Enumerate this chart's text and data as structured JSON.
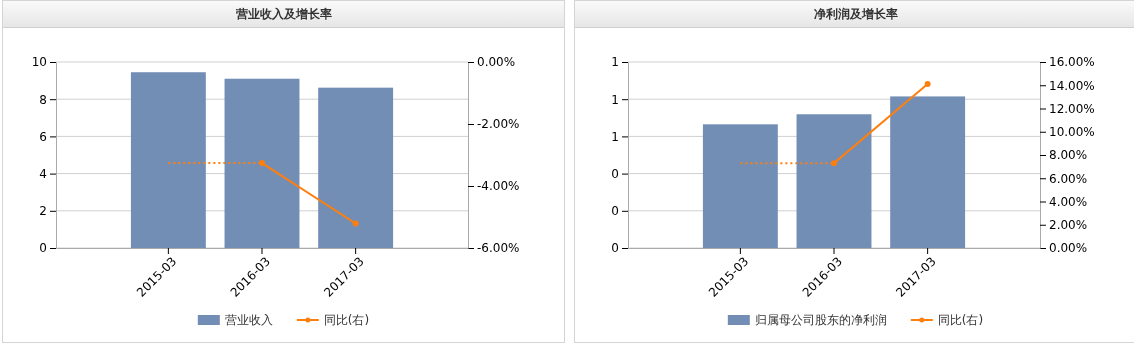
{
  "chart_data": [
    {
      "type": "bar",
      "title": "营业收入及增长率",
      "categories": [
        "2015-03",
        "2016-03",
        "2017-03"
      ],
      "series": [
        {
          "name": "营业收入",
          "color": "#728eb5",
          "values": [
            9.45,
            9.1,
            8.62
          ]
        },
        {
          "name": "同比(右)",
          "type": "line",
          "axis": "y2",
          "color": "#ff7f0e",
          "marker": "circle",
          "values": [
            null,
            -3.26,
            -5.21
          ]
        },
        {
          "type": "line",
          "axis": "y2",
          "color": "#ff7f0e",
          "line_style": "dotted",
          "values": [
            -3.26,
            -3.26,
            null
          ]
        }
      ],
      "ylim": [
        0,
        10
      ],
      "yticks": [
        0,
        2,
        4,
        6,
        8,
        10
      ],
      "y2lim": [
        -6,
        0
      ],
      "y2ticks": [
        {
          "value": -6,
          "label": "-6.00%"
        },
        {
          "value": -4,
          "label": "-4.00%"
        },
        {
          "value": -2,
          "label": "-2.00%"
        },
        {
          "value": 0,
          "label": "0.00%"
        }
      ],
      "grid": "y",
      "legend": "bottom"
    },
    {
      "type": "bar",
      "title": "净利润及增长率",
      "categories": [
        "2015-03",
        "2016-03",
        "2017-03"
      ],
      "series": [
        {
          "name": "归属母公司股东的净利润",
          "color": "#728eb5",
          "values": [
            0.665,
            0.719,
            0.815
          ]
        },
        {
          "name": "同比(右)",
          "type": "line",
          "axis": "y2",
          "color": "#ff7f0e",
          "marker": "circle",
          "values": [
            null,
            7.3,
            14.1
          ]
        },
        {
          "type": "line",
          "axis": "y2",
          "color": "#ff7f0e",
          "line_style": "dotted",
          "values": [
            7.3,
            7.3,
            null
          ]
        }
      ],
      "ylim": [
        0,
        1
      ],
      "yticks": [
        {
          "value": 0,
          "label": "0"
        },
        {
          "value": 0.2,
          "label": "0"
        },
        {
          "value": 0.4,
          "label": "0"
        },
        {
          "value": 0.6,
          "label": "1"
        },
        {
          "value": 0.8,
          "label": "1"
        },
        {
          "value": 1,
          "label": "1"
        }
      ],
      "y2lim": [
        0,
        16
      ],
      "y2ticks": [
        {
          "value": 0,
          "label": "0.00%"
        },
        {
          "value": 2,
          "label": "2.00%"
        },
        {
          "value": 4,
          "label": "4.00%"
        },
        {
          "value": 6,
          "label": "6.00%"
        },
        {
          "value": 8,
          "label": "8.00%"
        },
        {
          "value": 10,
          "label": "10.00%"
        },
        {
          "value": 12,
          "label": "12.00%"
        },
        {
          "value": 14,
          "label": "14.00%"
        },
        {
          "value": 16,
          "label": "16.00%"
        }
      ],
      "grid": "y",
      "legend": "bottom"
    }
  ]
}
